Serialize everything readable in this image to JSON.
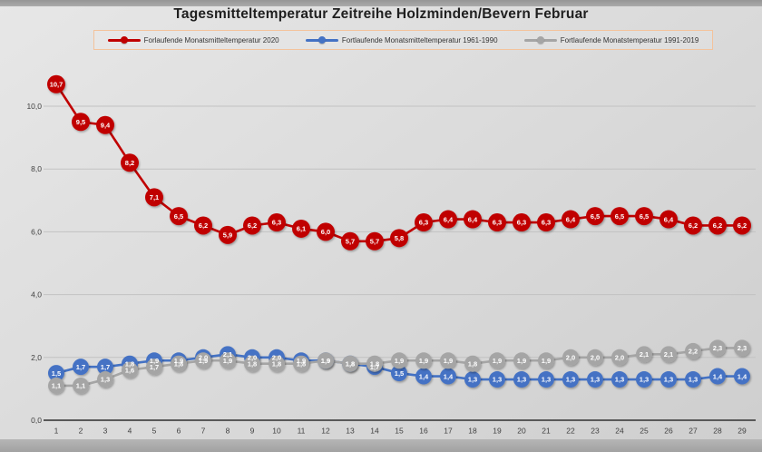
{
  "title": "Tagesmitteltemperatur Zeitreihe Holzminden/Bevern Februar",
  "legend": [
    {
      "label": "Forlaufende Monatsmitteltemperatur 2020",
      "color": "#C00000"
    },
    {
      "label": "Fortlaufende Monatsmitteltemperatur 1961-1990",
      "color": "#4472C4"
    },
    {
      "label": "Fortlaufende Monatstemperatur 1991-2019",
      "color": "#A5A5A5"
    }
  ],
  "chart_data": {
    "type": "line",
    "title": "Tagesmitteltemperatur Zeitreihe Holzminden/Bevern Februar",
    "xlabel": "",
    "ylabel": "",
    "legend_position": "top",
    "grid": true,
    "ylim": [
      0,
      11.2
    ],
    "x": [
      1,
      2,
      3,
      4,
      5,
      6,
      7,
      8,
      9,
      10,
      11,
      12,
      13,
      14,
      15,
      16,
      17,
      18,
      19,
      20,
      21,
      22,
      23,
      24,
      25,
      26,
      27,
      28,
      29
    ],
    "yticks": [
      {
        "value": 0,
        "label": "0,0"
      },
      {
        "value": 2,
        "label": "2,0"
      },
      {
        "value": 4,
        "label": "4,0"
      },
      {
        "value": 6,
        "label": "6,0"
      },
      {
        "value": 8,
        "label": "8,0"
      },
      {
        "value": 10,
        "label": "10,0"
      }
    ],
    "series": [
      {
        "name": "Forlaufende Monatsmitteltemperatur 2020",
        "color": "#C00000",
        "values": [
          10.7,
          9.5,
          9.4,
          8.2,
          7.1,
          6.5,
          6.2,
          5.9,
          6.2,
          6.3,
          6.1,
          6.0,
          5.7,
          5.7,
          5.8,
          6.3,
          6.4,
          6.4,
          6.3,
          6.3,
          6.3,
          6.4,
          6.5,
          6.5,
          6.5,
          6.4,
          6.2,
          6.2,
          6.2
        ]
      },
      {
        "name": "Fortlaufende Monatsmitteltemperatur 1961-1990",
        "color": "#4472C4",
        "values": [
          1.5,
          1.7,
          1.7,
          1.8,
          1.9,
          1.9,
          2.0,
          2.1,
          2.0,
          2.0,
          1.9,
          1.9,
          1.8,
          1.7,
          1.5,
          1.4,
          1.4,
          1.3,
          1.3,
          1.3,
          1.3,
          1.3,
          1.3,
          1.3,
          1.3,
          1.3,
          1.3,
          1.4,
          1.4
        ]
      },
      {
        "name": "Fortlaufende Monatstemperatur 1991-2019",
        "color": "#A5A5A5",
        "values": [
          1.1,
          1.1,
          1.3,
          1.6,
          1.7,
          1.8,
          1.9,
          1.9,
          1.8,
          1.8,
          1.8,
          1.9,
          1.8,
          1.8,
          1.9,
          1.9,
          1.9,
          1.8,
          1.9,
          1.9,
          1.9,
          2.0,
          2.0,
          2.0,
          2.1,
          2.1,
          2.2,
          2.3,
          2.3
        ]
      }
    ]
  }
}
